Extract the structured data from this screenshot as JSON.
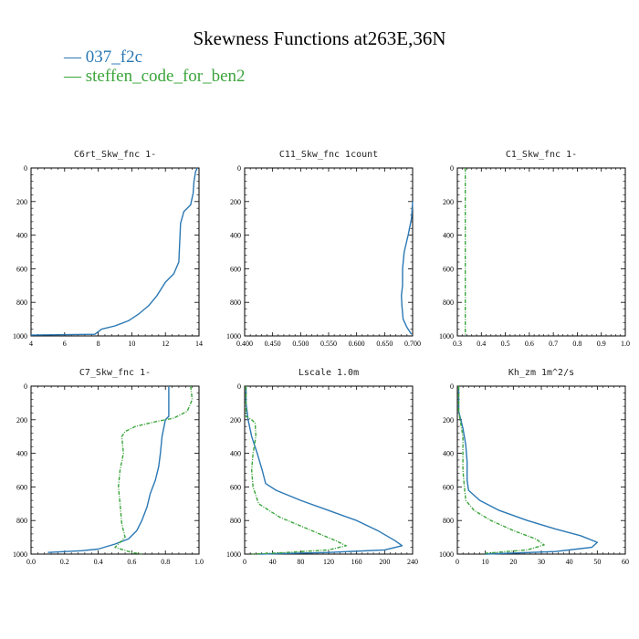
{
  "title": "Skewness Functions at263E,36N",
  "legend": [
    {
      "label": "037_f2c",
      "color": "#2a78b4"
    },
    {
      "label": "steffen_code_for_ben2",
      "color": "#3ca53c"
    }
  ],
  "chart_data": [
    {
      "type": "line",
      "title": "C6rt_Skw_fnc  1-",
      "xlim": [
        4,
        14
      ],
      "xticks": [
        "4",
        "6",
        "8",
        "10",
        "12",
        "14"
      ],
      "ylim": [
        0,
        1000
      ],
      "yticks": [
        "0",
        "200",
        "400",
        "600",
        "800",
        "1000"
      ],
      "y_inverted": true,
      "series": [
        {
          "name": "037_f2c",
          "color": "#2a78b4",
          "points": [
            [
              13.9,
              0
            ],
            [
              13.8,
              20
            ],
            [
              13.7,
              80
            ],
            [
              13.65,
              150
            ],
            [
              13.5,
              220
            ],
            [
              13.1,
              260
            ],
            [
              12.9,
              330
            ],
            [
              12.85,
              450
            ],
            [
              12.8,
              560
            ],
            [
              12.5,
              630
            ],
            [
              12.0,
              680
            ],
            [
              11.5,
              760
            ],
            [
              11.0,
              820
            ],
            [
              10.4,
              870
            ],
            [
              9.8,
              910
            ],
            [
              9.0,
              940
            ],
            [
              8.2,
              960
            ],
            [
              7.8,
              990
            ],
            [
              4.0,
              995
            ]
          ]
        },
        {
          "name": "steffen_code_for_ben2",
          "color": "#3ca53c",
          "points": []
        }
      ]
    },
    {
      "type": "line",
      "title": "C11_Skw_fnc  1count",
      "xlim": [
        0.4,
        0.7
      ],
      "xticks": [
        "0.400",
        "0.450",
        "0.500",
        "0.550",
        "0.600",
        "0.650",
        "0.700"
      ],
      "ylim": [
        0,
        1000
      ],
      "yticks": [
        "0",
        "200",
        "400",
        "600",
        "800",
        "1000"
      ],
      "y_inverted": true,
      "series": [
        {
          "name": "037_f2c",
          "color": "#2a78b4",
          "points": [
            [
              0.7,
              200
            ],
            [
              0.698,
              300
            ],
            [
              0.692,
              400
            ],
            [
              0.685,
              500
            ],
            [
              0.682,
              600
            ],
            [
              0.682,
              700
            ],
            [
              0.68,
              760
            ],
            [
              0.681,
              820
            ],
            [
              0.683,
              900
            ],
            [
              0.69,
              950
            ],
            [
              0.698,
              990
            ]
          ]
        },
        {
          "name": "steffen_code_for_ben2",
          "color": "#3ca53c",
          "points": []
        }
      ]
    },
    {
      "type": "line",
      "title": "C1_Skw_fnc  1-",
      "xlim": [
        0.3,
        1.0
      ],
      "xticks": [
        "0.3",
        "0.4",
        "0.5",
        "0.6",
        "0.7",
        "0.8",
        "0.9",
        "1.0"
      ],
      "ylim": [
        0,
        1000
      ],
      "yticks": [
        "0",
        "200",
        "400",
        "600",
        "800",
        "1000"
      ],
      "y_inverted": true,
      "series": [
        {
          "name": "037_f2c",
          "color": "#2a78b4",
          "points": []
        },
        {
          "name": "steffen_code_for_ben2",
          "color": "#3ca53c",
          "points": [
            [
              0.333,
              0
            ],
            [
              0.333,
              1000
            ]
          ]
        }
      ]
    },
    {
      "type": "line",
      "title": "C7_Skw_fnc  1-",
      "xlim": [
        0.0,
        1.0
      ],
      "xticks": [
        "0.0",
        "0.2",
        "0.4",
        "0.6",
        "0.8",
        "1.0"
      ],
      "ylim": [
        0,
        1000
      ],
      "yticks": [
        "0",
        "200",
        "400",
        "600",
        "800",
        "1000"
      ],
      "y_inverted": true,
      "series": [
        {
          "name": "037_f2c",
          "color": "#2a78b4",
          "points": [
            [
              0.82,
              0
            ],
            [
              0.82,
              180
            ],
            [
              0.8,
              200
            ],
            [
              0.78,
              300
            ],
            [
              0.77,
              400
            ],
            [
              0.76,
              480
            ],
            [
              0.74,
              560
            ],
            [
              0.71,
              640
            ],
            [
              0.69,
              720
            ],
            [
              0.66,
              800
            ],
            [
              0.63,
              860
            ],
            [
              0.58,
              910
            ],
            [
              0.5,
              940
            ],
            [
              0.4,
              970
            ],
            [
              0.3,
              980
            ],
            [
              0.1,
              990
            ]
          ]
        },
        {
          "name": "steffen_code_for_ben2",
          "color": "#3ca53c",
          "points": [
            [
              0.95,
              0
            ],
            [
              0.96,
              80
            ],
            [
              0.93,
              150
            ],
            [
              0.85,
              190
            ],
            [
              0.75,
              210
            ],
            [
              0.62,
              240
            ],
            [
              0.56,
              270
            ],
            [
              0.54,
              300
            ],
            [
              0.55,
              400
            ],
            [
              0.53,
              500
            ],
            [
              0.52,
              600
            ],
            [
              0.53,
              700
            ],
            [
              0.54,
              820
            ],
            [
              0.56,
              900
            ],
            [
              0.5,
              960
            ],
            [
              0.6,
              990
            ],
            [
              0.66,
              1000
            ]
          ]
        }
      ]
    },
    {
      "type": "line",
      "title": "Lscale  1.0m",
      "xlim": [
        0,
        240
      ],
      "xticks": [
        "0",
        "40",
        "80",
        "120",
        "160",
        "200",
        "240"
      ],
      "ylim": [
        0,
        1000
      ],
      "yticks": [
        "0",
        "200",
        "400",
        "600",
        "800",
        "1000"
      ],
      "y_inverted": true,
      "series": [
        {
          "name": "037_f2c",
          "color": "#2a78b4",
          "points": [
            [
              2,
              0
            ],
            [
              2,
              100
            ],
            [
              5,
              200
            ],
            [
              10,
              300
            ],
            [
              18,
              400
            ],
            [
              25,
              500
            ],
            [
              30,
              580
            ],
            [
              45,
              620
            ],
            [
              80,
              680
            ],
            [
              120,
              740
            ],
            [
              160,
              800
            ],
            [
              190,
              860
            ],
            [
              215,
              920
            ],
            [
              225,
              950
            ],
            [
              200,
              975
            ],
            [
              120,
              990
            ],
            [
              20,
              1000
            ]
          ]
        },
        {
          "name": "steffen_code_for_ben2",
          "color": "#3ca53c",
          "points": [
            [
              2,
              0
            ],
            [
              2,
              180
            ],
            [
              10,
              200
            ],
            [
              15,
              220
            ],
            [
              16,
              300
            ],
            [
              12,
              400
            ],
            [
              10,
              500
            ],
            [
              12,
              600
            ],
            [
              20,
              700
            ],
            [
              50,
              780
            ],
            [
              90,
              850
            ],
            [
              130,
              920
            ],
            [
              145,
              950
            ],
            [
              120,
              975
            ],
            [
              60,
              990
            ],
            [
              10,
              1000
            ]
          ]
        }
      ]
    },
    {
      "type": "line",
      "title": "Kh_zm  1m^2/s",
      "xlim": [
        0,
        60
      ],
      "xticks": [
        "0",
        "10",
        "20",
        "30",
        "40",
        "50",
        "60"
      ],
      "ylim": [
        0,
        1000
      ],
      "yticks": [
        "0",
        "200",
        "400",
        "600",
        "800",
        "1000"
      ],
      "y_inverted": true,
      "series": [
        {
          "name": "037_f2c",
          "color": "#2a78b4",
          "points": [
            [
              0.5,
              0
            ],
            [
              0.5,
              150
            ],
            [
              2,
              250
            ],
            [
              3,
              350
            ],
            [
              3.5,
              450
            ],
            [
              3.5,
              560
            ],
            [
              4,
              620
            ],
            [
              8,
              680
            ],
            [
              15,
              740
            ],
            [
              25,
              800
            ],
            [
              35,
              850
            ],
            [
              44,
              890
            ],
            [
              50,
              930
            ],
            [
              48,
              960
            ],
            [
              35,
              985
            ],
            [
              10,
              1000
            ]
          ]
        },
        {
          "name": "steffen_code_for_ben2",
          "color": "#3ca53c",
          "points": [
            [
              0.5,
              0
            ],
            [
              0.5,
              150
            ],
            [
              1,
              200
            ],
            [
              2,
              300
            ],
            [
              2,
              500
            ],
            [
              2.5,
              600
            ],
            [
              3,
              680
            ],
            [
              6,
              740
            ],
            [
              12,
              800
            ],
            [
              20,
              860
            ],
            [
              28,
              910
            ],
            [
              31,
              945
            ],
            [
              25,
              975
            ],
            [
              10,
              995
            ]
          ]
        }
      ]
    }
  ]
}
